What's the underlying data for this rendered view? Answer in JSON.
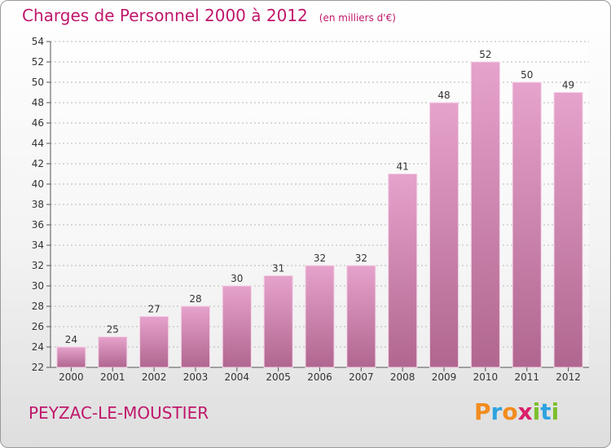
{
  "header": {
    "title": "Charges de Personnel 2000 à 2012",
    "subtitle": "(en milliers d'€)"
  },
  "footer": {
    "commune": "PEYZAC-LE-MOUSTIER",
    "logo": "Proxiti"
  },
  "colors": {
    "accent": "#c0176b",
    "bar_light": "#e6a3cc",
    "bar_dark": "#b0668f",
    "logo_letters": [
      "#f28c1f",
      "#2ea3e0",
      "#f28c1f",
      "#d91f6b",
      "#7bbf2a",
      "#2ea3e0",
      "#7bbf2a"
    ]
  },
  "chart_data": {
    "type": "bar",
    "categories": [
      "2000",
      "2001",
      "2002",
      "2003",
      "2004",
      "2005",
      "2006",
      "2007",
      "2008",
      "2009",
      "2010",
      "2011",
      "2012"
    ],
    "values": [
      24,
      25,
      27,
      28,
      30,
      31,
      32,
      32,
      41,
      48,
      52,
      50,
      49
    ],
    "ylim": [
      22,
      54
    ],
    "yticks": [
      22,
      24,
      26,
      28,
      30,
      32,
      34,
      36,
      38,
      40,
      42,
      44,
      46,
      48,
      50,
      52,
      54
    ],
    "grid": true
  }
}
